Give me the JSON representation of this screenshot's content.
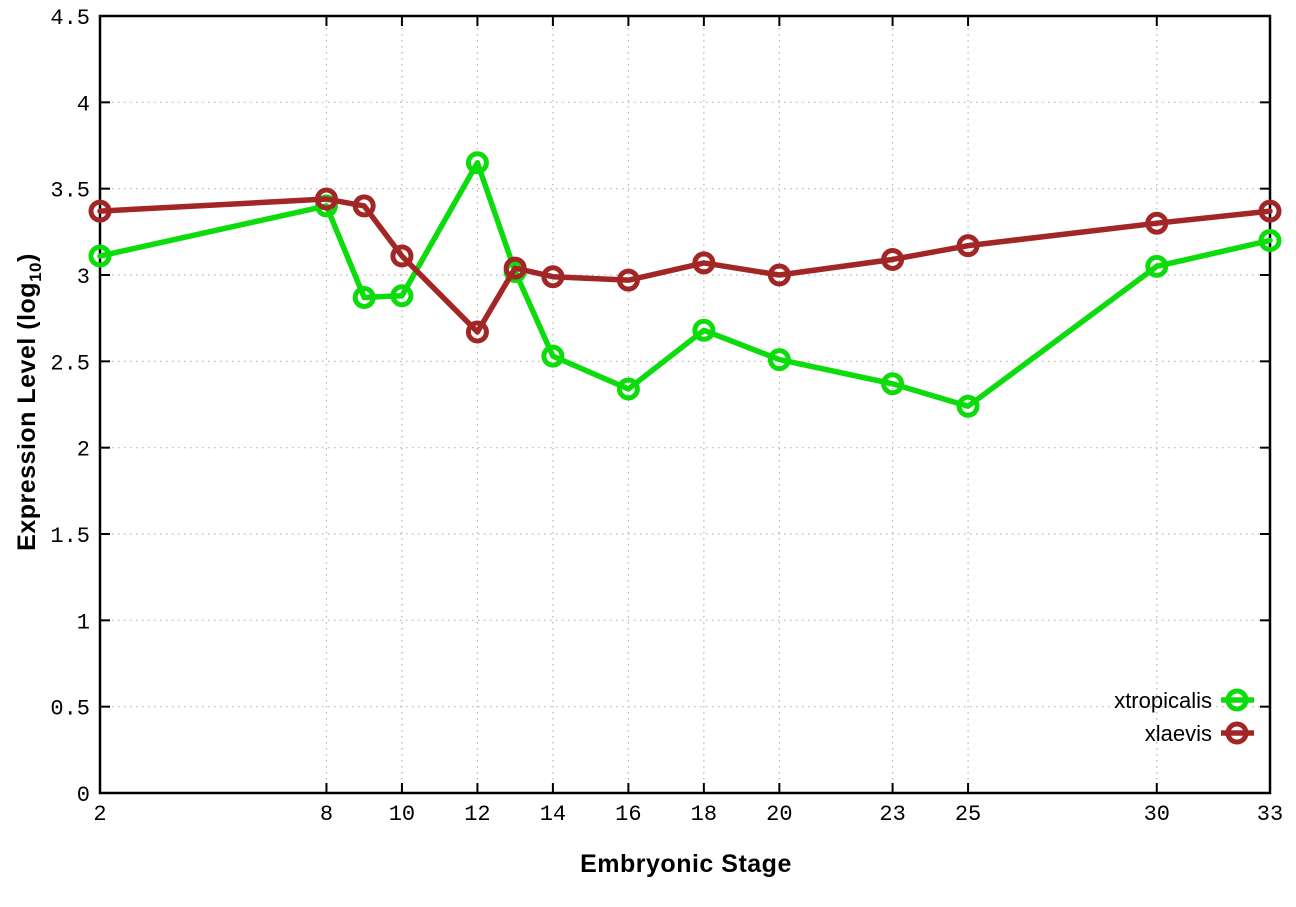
{
  "chart_data": {
    "type": "line",
    "title": "",
    "xlabel": "Embryonic Stage",
    "ylabel_main": "Expression Level (log",
    "ylabel_sub": "10",
    "ylabel_close": ")",
    "x": [
      2,
      8,
      9,
      10,
      12,
      13,
      14,
      16,
      18,
      20,
      23,
      25,
      30,
      33
    ],
    "series": [
      {
        "name": "xtropicalis",
        "color": "#0cdb0c",
        "values": [
          3.11,
          3.4,
          2.87,
          2.88,
          3.65,
          3.02,
          2.53,
          2.34,
          2.68,
          2.51,
          2.37,
          2.24,
          3.05,
          3.2
        ]
      },
      {
        "name": "xlaevis",
        "color": "#a32626",
        "values": [
          3.37,
          3.44,
          3.4,
          3.11,
          2.67,
          3.04,
          2.99,
          2.97,
          3.07,
          3.0,
          3.09,
          3.17,
          3.3,
          3.37
        ]
      }
    ],
    "xticks": {
      "values": [
        2,
        8,
        10,
        12,
        14,
        16,
        18,
        20,
        23,
        25,
        30,
        33
      ],
      "labels": [
        "2",
        "8",
        "10",
        "12",
        "14",
        "16",
        "18",
        "20",
        "23",
        "25",
        "30",
        "33"
      ]
    },
    "yticks": {
      "values": [
        0,
        0.5,
        1,
        1.5,
        2,
        2.5,
        3,
        3.5,
        4,
        4.5
      ],
      "labels": [
        "0",
        "0.5",
        "1",
        "1.5",
        "2",
        "2.5",
        "3",
        "3.5",
        "4",
        "4.5"
      ]
    },
    "xlim": [
      2,
      33
    ],
    "ylim": [
      0,
      4.5
    ],
    "grid": true,
    "legend_position": "bottom-right",
    "colors": {
      "grid": "#b5b5b5",
      "axis": "#000000",
      "background": "#ffffff"
    }
  }
}
